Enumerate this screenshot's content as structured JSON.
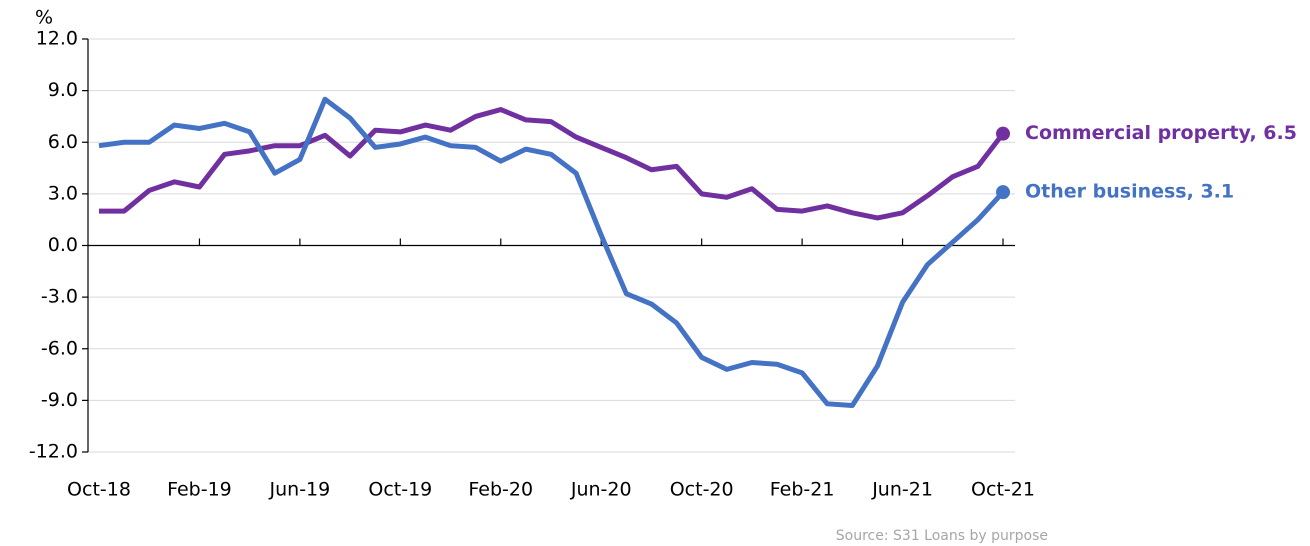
{
  "chart_data": {
    "type": "line",
    "y_label": "%",
    "source": "Source:  S31 Loans by purpose",
    "categories": [
      "Oct-18",
      null,
      null,
      null,
      "Feb-19",
      null,
      null,
      null,
      "Jun-19",
      null,
      null,
      null,
      "Oct-19",
      null,
      null,
      null,
      "Feb-20",
      null,
      null,
      null,
      "Jun-20",
      null,
      null,
      null,
      "Oct-20",
      null,
      null,
      null,
      "Feb-21",
      null,
      null,
      null,
      "Jun-21",
      null,
      null,
      null,
      "Oct-21"
    ],
    "series": [
      {
        "name": "Commercial property, 6.5",
        "color": "#7030a0",
        "values": [
          2.0,
          2.0,
          3.2,
          3.7,
          3.4,
          5.3,
          5.5,
          5.8,
          5.8,
          6.4,
          5.2,
          6.7,
          6.6,
          7.0,
          6.7,
          7.5,
          7.9,
          7.3,
          7.2,
          6.3,
          5.7,
          5.1,
          4.4,
          4.6,
          3.0,
          2.8,
          3.3,
          2.1,
          2.0,
          2.3,
          1.9,
          1.6,
          1.9,
          2.9,
          4.0,
          4.6,
          6.5
        ]
      },
      {
        "name": "Other business,  3.1",
        "color": "#4472c4",
        "values": [
          5.8,
          6.0,
          6.0,
          7.0,
          6.8,
          7.1,
          6.6,
          4.2,
          5.0,
          8.5,
          7.4,
          5.7,
          5.9,
          6.3,
          5.8,
          5.7,
          4.9,
          5.6,
          5.3,
          4.2,
          0.6,
          -2.8,
          -3.4,
          -4.5,
          -6.5,
          -7.2,
          -6.8,
          -6.9,
          -7.4,
          -9.2,
          -9.3,
          -7.0,
          -3.3,
          -1.1,
          0.2,
          1.5,
          3.1
        ]
      }
    ],
    "ylim": [
      -12,
      12
    ],
    "yticks": [
      {
        "value": -12,
        "label": "-12.0"
      },
      {
        "value": -9,
        "label": "-9.0"
      },
      {
        "value": -6,
        "label": "-6.0"
      },
      {
        "value": -3,
        "label": "-3.0"
      },
      {
        "value": 0,
        "label": "0.0"
      },
      {
        "value": 3,
        "label": "3.0"
      },
      {
        "value": 6,
        "label": "6.0"
      },
      {
        "value": 9,
        "label": "9.0"
      },
      {
        "value": 12,
        "label": "12.0"
      }
    ],
    "grid": true
  }
}
